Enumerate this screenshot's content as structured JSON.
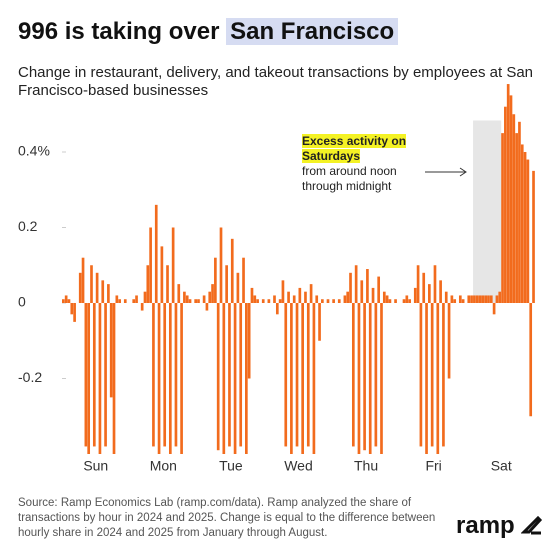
{
  "chart_data": {
    "type": "bar",
    "title": "996 is taking over",
    "title_highlight": "San Francisco",
    "subtitle": "Change in restaurant, delivery, and takeout transactions by employees at San Francisco-based businesses",
    "annotation": {
      "highlight": "Excess activity on Saturdays",
      "text": "from around noon through midnight"
    },
    "source": "Source: Ramp Economics Lab (ramp.com/data). Ramp analyzed the share of transactions by hour in 2024 and 2025. Change is equal to the difference between hourly share in 2024 and 2025 from January through August.",
    "logo": "ramp",
    "color": "#f26b1d",
    "categories": [
      "Sun",
      "Mon",
      "Tue",
      "Wed",
      "Thu",
      "Fri",
      "Sat"
    ],
    "values": [
      [
        0.01,
        0.02,
        0.01,
        -0.03,
        -0.05,
        0.0,
        0.08,
        0.12,
        -0.38,
        -0.4,
        0.1,
        -0.38,
        0.08,
        -0.4,
        0.06,
        -0.38,
        0.05,
        -0.25,
        -0.4,
        0.02,
        0.01,
        0.0,
        0.01,
        0.0
      ],
      [
        0.0,
        0.01,
        0.02,
        0.0,
        -0.02,
        0.03,
        0.1,
        0.2,
        -0.38,
        0.26,
        -0.4,
        0.15,
        -0.38,
        0.1,
        -0.4,
        0.2,
        -0.38,
        0.05,
        -0.4,
        0.03,
        0.02,
        0.01,
        0.0,
        0.01
      ],
      [
        0.01,
        0.0,
        0.02,
        -0.02,
        0.03,
        0.05,
        0.12,
        -0.39,
        0.2,
        -0.4,
        0.1,
        -0.38,
        0.17,
        -0.4,
        0.08,
        -0.38,
        0.12,
        -0.4,
        -0.2,
        0.04,
        0.02,
        0.01,
        0.0,
        0.01
      ],
      [
        0.0,
        0.01,
        0.0,
        0.02,
        -0.03,
        0.01,
        0.06,
        -0.38,
        0.03,
        -0.4,
        0.02,
        -0.38,
        0.04,
        -0.4,
        0.03,
        -0.38,
        0.05,
        -0.4,
        0.02,
        -0.1,
        0.01,
        0.0,
        0.01,
        0.0
      ],
      [
        0.01,
        0.0,
        0.01,
        0.0,
        0.02,
        0.03,
        0.08,
        -0.38,
        0.1,
        -0.4,
        0.06,
        -0.39,
        0.09,
        -0.4,
        0.04,
        -0.38,
        0.07,
        -0.4,
        0.03,
        0.02,
        0.01,
        0.0,
        0.01,
        0.0
      ],
      [
        0.0,
        0.01,
        0.02,
        0.01,
        0.0,
        0.04,
        0.1,
        -0.38,
        0.08,
        -0.4,
        0.05,
        -0.38,
        0.1,
        -0.4,
        0.06,
        -0.38,
        0.03,
        -0.2,
        0.02,
        0.01,
        0.0,
        0.02,
        0.01,
        0.0
      ],
      [
        0.02,
        0.02,
        0.02,
        0.02,
        0.02,
        0.02,
        0.02,
        0.02,
        0.02,
        -0.03,
        0.02,
        0.03,
        0.45,
        0.52,
        0.58,
        0.55,
        0.5,
        0.45,
        0.48,
        0.42,
        0.4,
        0.38,
        -0.3,
        0.35
      ]
    ],
    "ylim": [
      -0.4,
      0.6
    ],
    "yticks": [
      -0.2,
      0,
      0.2,
      {
        "value": 0.4,
        "label": "0.4%"
      }
    ]
  }
}
